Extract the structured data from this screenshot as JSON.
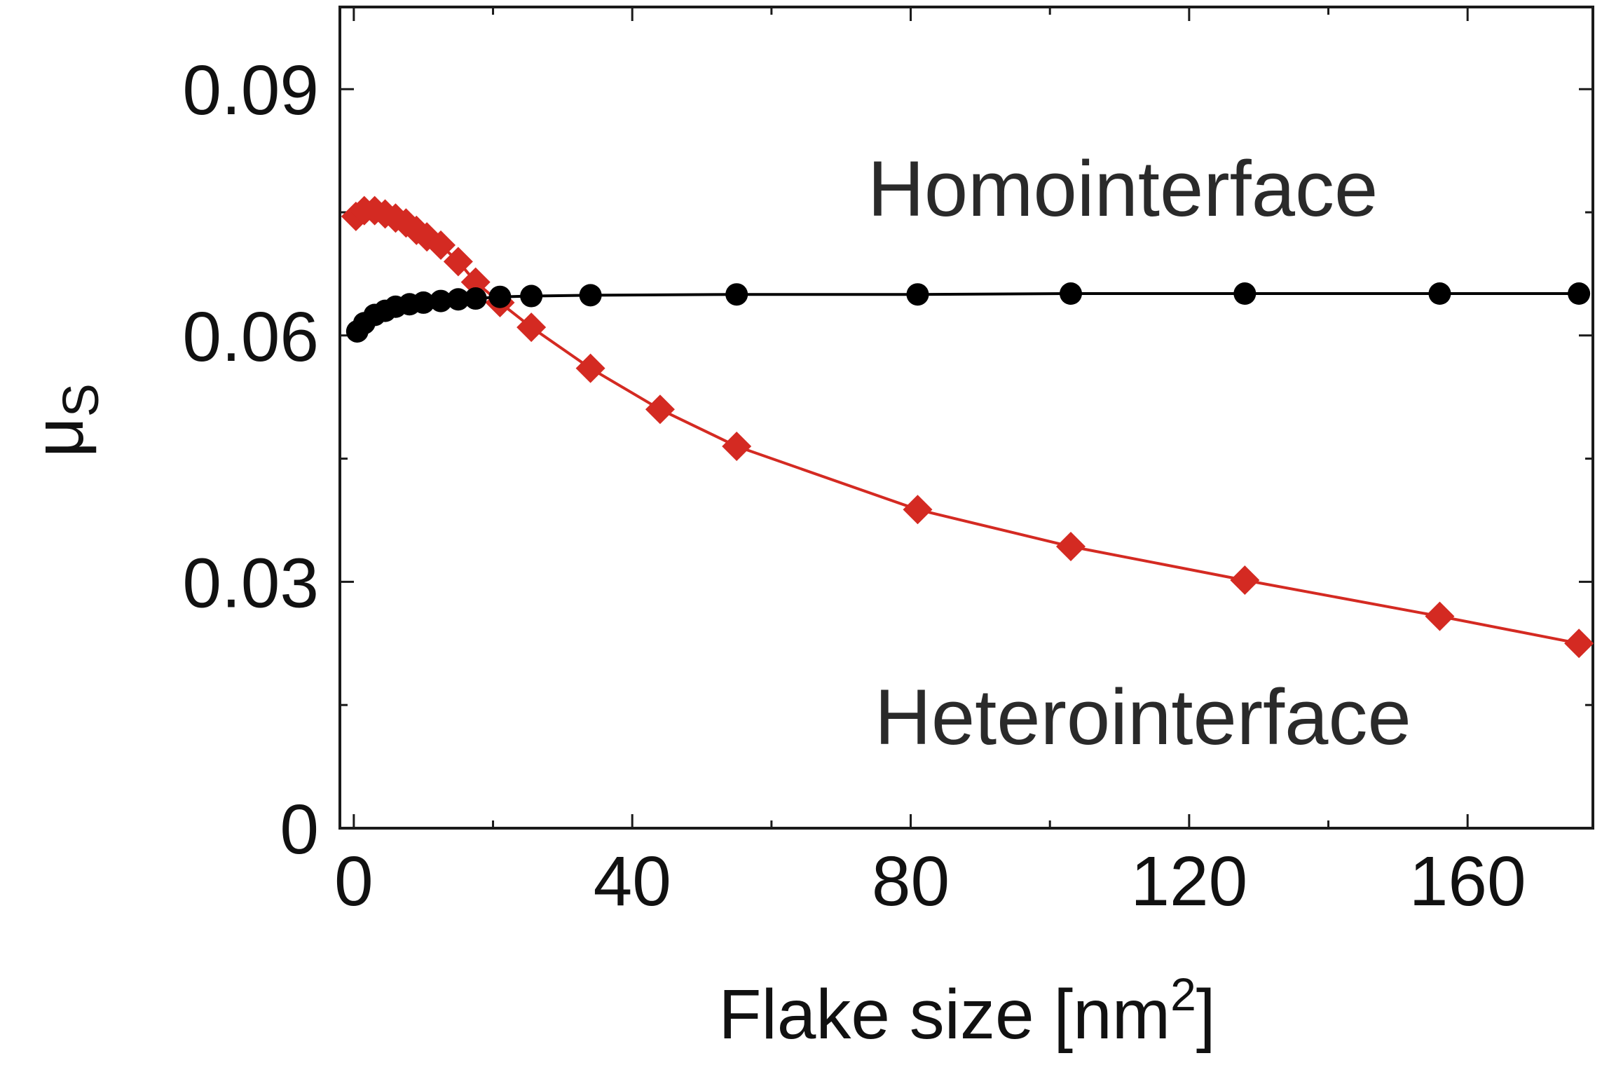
{
  "chart_data": {
    "type": "line",
    "title": "",
    "xlabel": "Flake size [nm",
    "xlabel_sup": "2",
    "xlabel_end": "]",
    "ylabel": "μ",
    "ylabel_sub": "S",
    "xlim": [
      -2,
      178
    ],
    "ylim": [
      0,
      0.1
    ],
    "x_ticks": [
      0,
      40,
      80,
      120,
      160
    ],
    "x_tick_labels": [
      "0",
      "40",
      "80",
      "120",
      "160"
    ],
    "y_ticks": [
      0,
      0.03,
      0.06,
      0.09
    ],
    "y_tick_labels": [
      "0",
      "0.03",
      "0.06",
      "0.09"
    ],
    "x_minor_ticks": [
      20,
      60,
      100,
      140
    ],
    "y_minor_ticks": [
      0.015,
      0.045,
      0.075
    ],
    "grid": false,
    "annotations": [
      {
        "id": "homo",
        "text": "Homointerface"
      },
      {
        "id": "hetero",
        "text": "Heterointerface"
      }
    ],
    "series": [
      {
        "name": "Homointerface",
        "color": "#000000",
        "marker": "circle",
        "x": [
          0.5,
          1.5,
          3,
          4.5,
          6,
          8,
          10,
          12.5,
          15,
          17.5,
          21,
          25.5,
          34,
          55,
          81,
          103,
          128,
          156,
          176
        ],
        "y": [
          0.0605,
          0.0615,
          0.0625,
          0.063,
          0.0635,
          0.0638,
          0.064,
          0.0642,
          0.0644,
          0.0645,
          0.0647,
          0.0648,
          0.0649,
          0.065,
          0.065,
          0.0651,
          0.0651,
          0.0651,
          0.0651
        ]
      },
      {
        "name": "Heterointerface",
        "color": "#d42a22",
        "marker": "diamond",
        "x": [
          0.3,
          1.5,
          3,
          4.5,
          6,
          7.5,
          9,
          10.5,
          12.5,
          15,
          17.5,
          21,
          25.5,
          34,
          44,
          55,
          81,
          103,
          128,
          156,
          176
        ],
        "y": [
          0.0745,
          0.0752,
          0.0752,
          0.0748,
          0.0743,
          0.0737,
          0.0728,
          0.072,
          0.071,
          0.069,
          0.0665,
          0.064,
          0.061,
          0.056,
          0.051,
          0.0465,
          0.0388,
          0.0343,
          0.0302,
          0.0258,
          0.0225
        ]
      }
    ]
  }
}
